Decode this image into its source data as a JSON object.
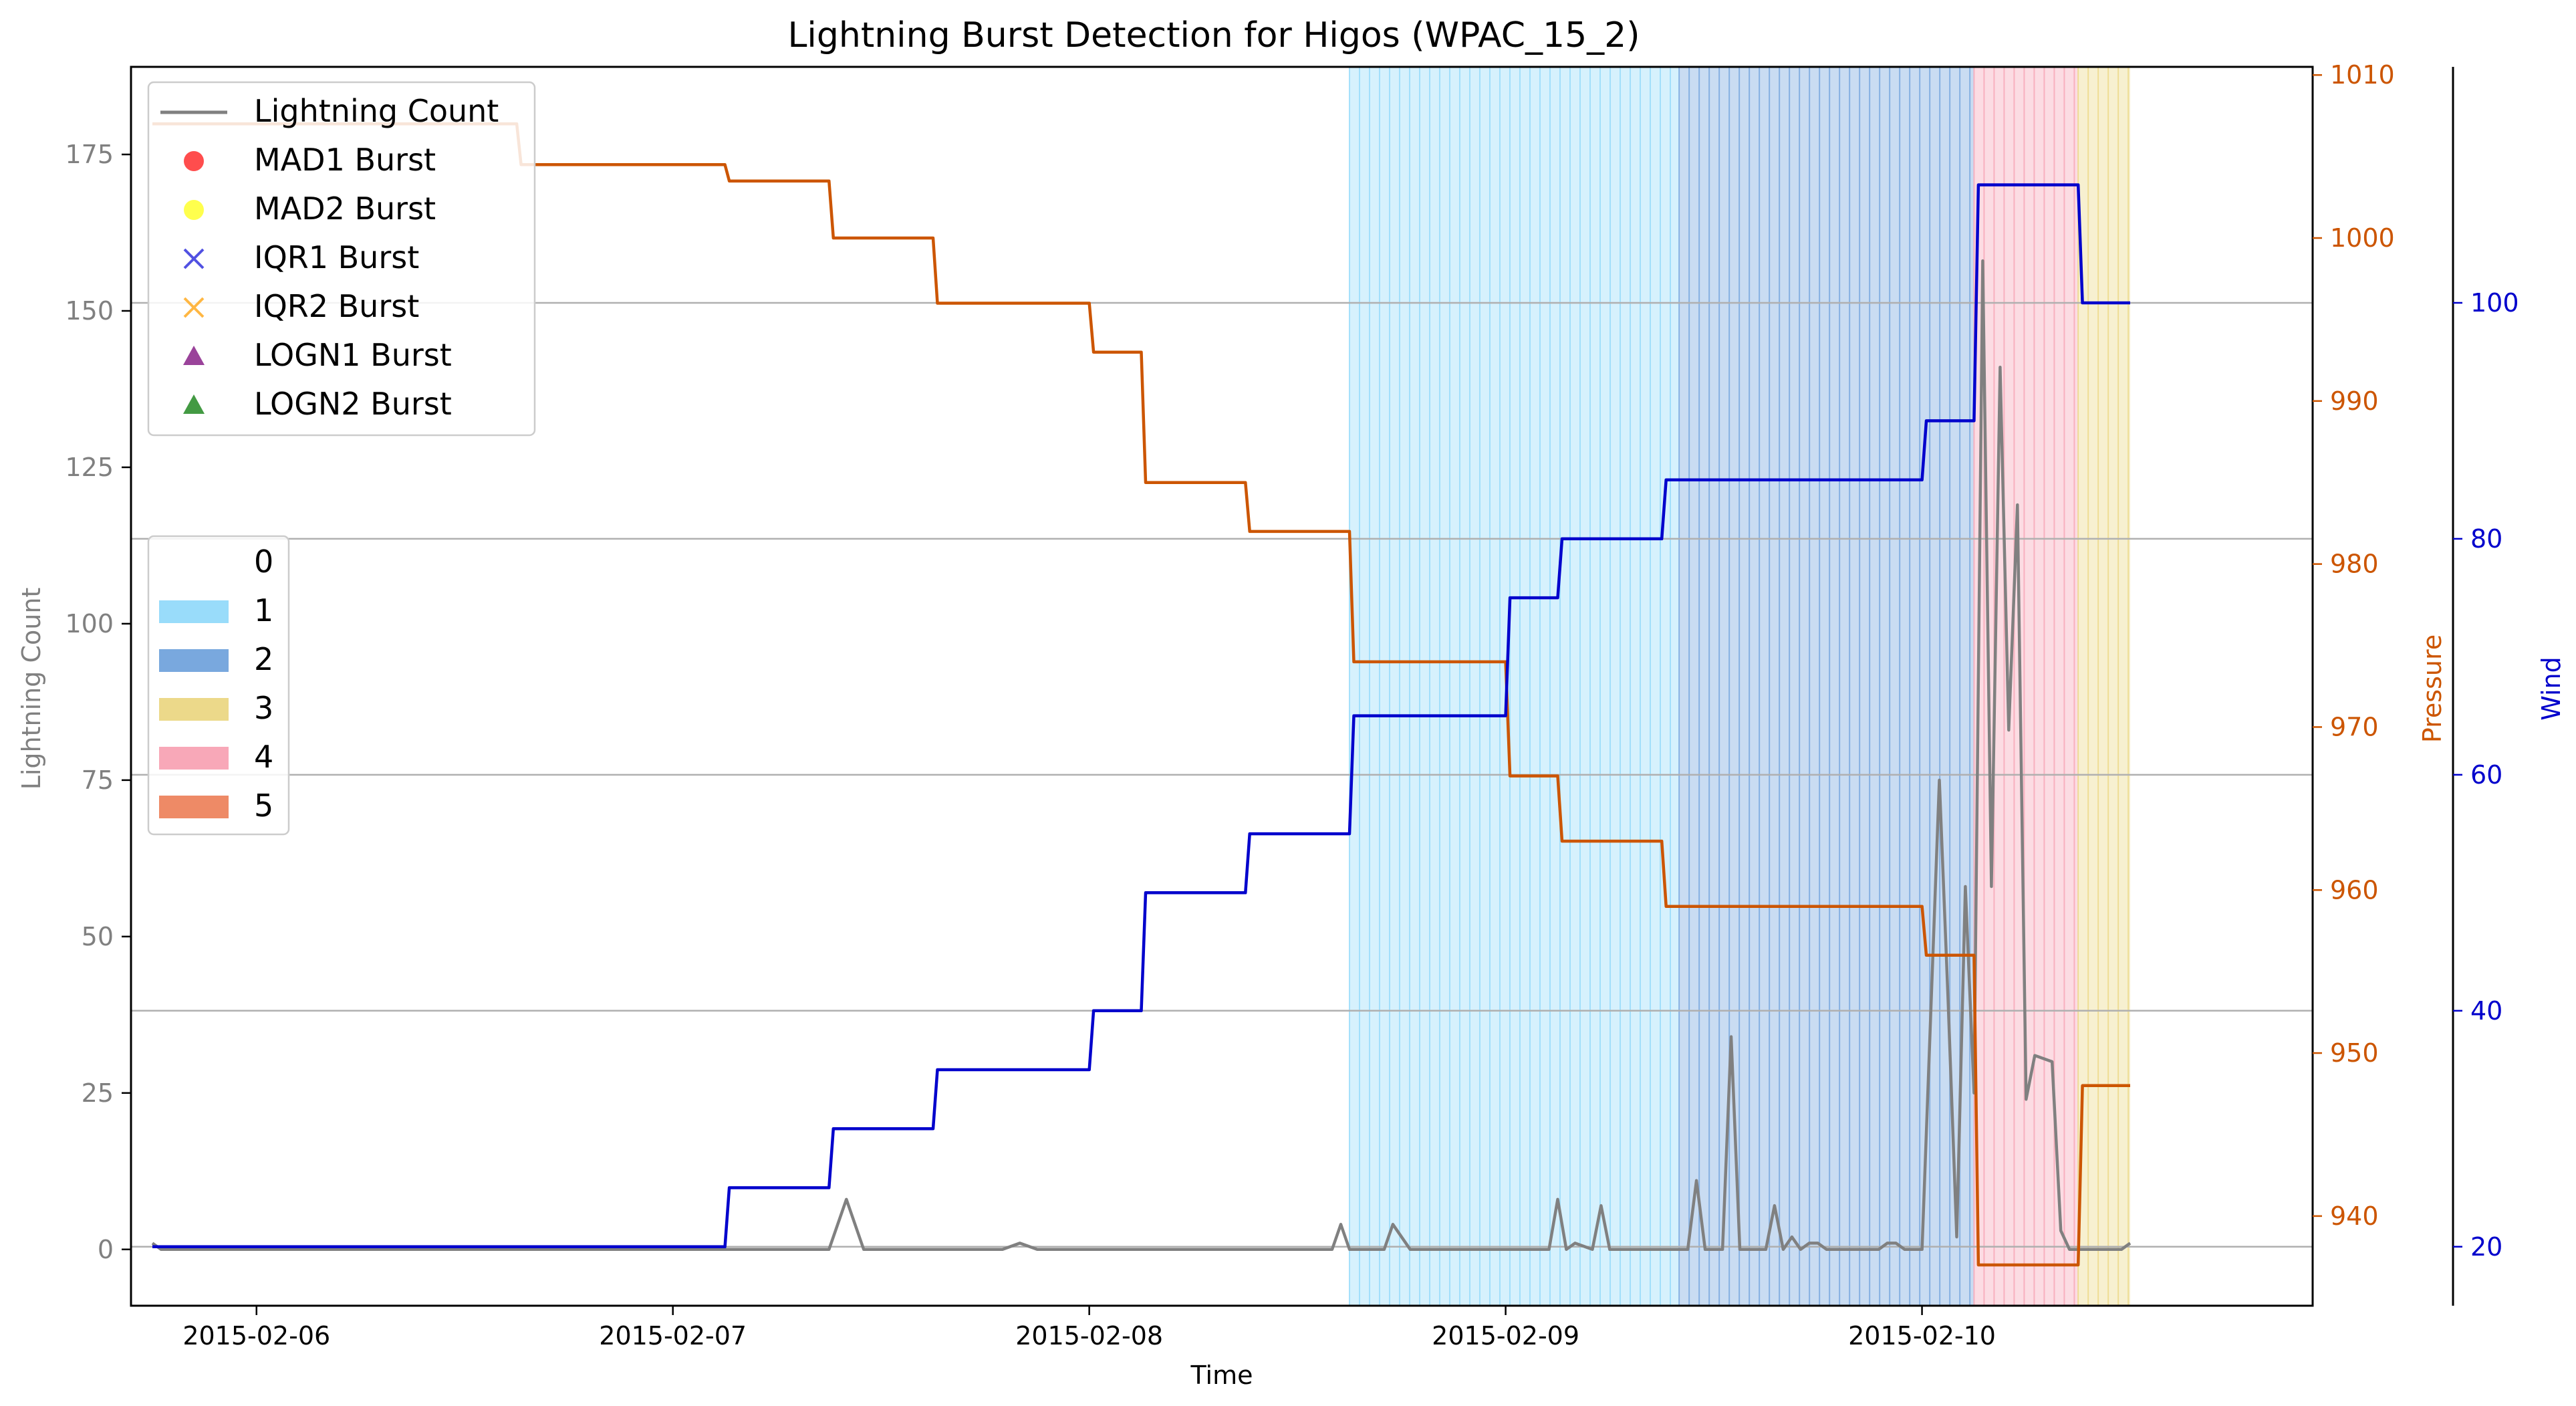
{
  "chart_data": {
    "type": "line",
    "title": "Lightning Burst Detection for Higos (WPAC_15_2)",
    "xlabel": "Time",
    "x_range": [
      "2015-02-05 16:46",
      "2015-02-10 22:31"
    ],
    "x_ticks": [
      "2015-02-06",
      "2015-02-07",
      "2015-02-08",
      "2015-02-09",
      "2015-02-10"
    ],
    "grid": "horizontal lines at wind axis ticks",
    "axes": {
      "lightning": {
        "label": "Lightning Count",
        "ylim": [
          -9,
          189
        ],
        "ticks": [
          0,
          25,
          50,
          75,
          100,
          125,
          150,
          175
        ],
        "color": "#808080"
      },
      "pressure": {
        "label": "Pressure",
        "ylim": [
          934.5,
          1010.5
        ],
        "ticks": [
          940,
          950,
          960,
          970,
          980,
          990,
          1000,
          1010
        ],
        "color": "#cc5500"
      },
      "wind": {
        "label": "Wind",
        "ylim": [
          15,
          120
        ],
        "ticks": [
          20,
          40,
          60,
          80,
          100
        ],
        "color": "#0000cc"
      }
    },
    "category_bands": [
      {
        "category": 1,
        "start": "2015-02-08 15:00",
        "end": "2015-02-09 10:00"
      },
      {
        "category": 2,
        "start": "2015-02-09 10:00",
        "end": "2015-02-10 03:00"
      },
      {
        "category": 4,
        "start": "2015-02-10 03:00",
        "end": "2015-02-10 09:00"
      },
      {
        "category": 3,
        "start": "2015-02-10 09:00",
        "end": "2015-02-10 12:00"
      }
    ],
    "series": [
      {
        "name": "Lightning Count",
        "axis": "lightning",
        "color": "#808080",
        "x": [
          "2015-02-05 18:00",
          "2015-02-05 18:30",
          "2015-02-07 09:00",
          "2015-02-07 10:00",
          "2015-02-07 11:00",
          "2015-02-07 12:00",
          "2015-02-07 19:00",
          "2015-02-07 20:00",
          "2015-02-07 21:00",
          "2015-02-08 14:00",
          "2015-02-08 14:30",
          "2015-02-08 15:00",
          "2015-02-08 17:00",
          "2015-02-08 17:30",
          "2015-02-08 18:30",
          "2015-02-09 02:30",
          "2015-02-09 03:00",
          "2015-02-09 03:30",
          "2015-02-09 04:00",
          "2015-02-09 05:00",
          "2015-02-09 05:30",
          "2015-02-09 06:00",
          "2015-02-09 10:30",
          "2015-02-09 11:00",
          "2015-02-09 11:30",
          "2015-02-09 12:30",
          "2015-02-09 13:00",
          "2015-02-09 13:30",
          "2015-02-09 14:00",
          "2015-02-09 15:00",
          "2015-02-09 15:30",
          "2015-02-09 16:00",
          "2015-02-09 16:30",
          "2015-02-09 17:00",
          "2015-02-09 17:30",
          "2015-02-09 18:00",
          "2015-02-09 18:30",
          "2015-02-09 19:00",
          "2015-02-09 21:30",
          "2015-02-09 22:00",
          "2015-02-09 22:30",
          "2015-02-09 23:00",
          "2015-02-10 00:00",
          "2015-02-10 01:00",
          "2015-02-10 01:30",
          "2015-02-10 02:00",
          "2015-02-10 02:30",
          "2015-02-10 03:00",
          "2015-02-10 03:30",
          "2015-02-10 04:00",
          "2015-02-10 04:30",
          "2015-02-10 05:00",
          "2015-02-10 05:30",
          "2015-02-10 06:00",
          "2015-02-10 06:30",
          "2015-02-10 07:30",
          "2015-02-10 08:00",
          "2015-02-10 08:30",
          "2015-02-10 09:30",
          "2015-02-10 10:00",
          "2015-02-10 11:30",
          "2015-02-10 12:00"
        ],
        "y": [
          1,
          0,
          0,
          8,
          0,
          0,
          0,
          1,
          0,
          0,
          4,
          0,
          0,
          4,
          0,
          0,
          8,
          0,
          1,
          0,
          7,
          0,
          0,
          11,
          0,
          0,
          34,
          0,
          0,
          0,
          7,
          0,
          2,
          0,
          1,
          1,
          0,
          0,
          0,
          1,
          1,
          0,
          0,
          75,
          40,
          2,
          58,
          25,
          158,
          58,
          141,
          83,
          119,
          24,
          31,
          30,
          3,
          0,
          0,
          0,
          0,
          1
        ]
      },
      {
        "name": "Pressure",
        "axis": "pressure",
        "color": "#cc5500",
        "x": [
          "2015-02-05 18:00",
          "2015-02-06 15:00",
          "2015-02-06 15:15",
          "2015-02-07 03:00",
          "2015-02-07 03:15",
          "2015-02-07 09:00",
          "2015-02-07 09:15",
          "2015-02-07 15:00",
          "2015-02-07 15:15",
          "2015-02-07 24:00",
          "2015-02-08 00:15",
          "2015-02-08 03:00",
          "2015-02-08 03:15",
          "2015-02-08 09:00",
          "2015-02-08 09:15",
          "2015-02-08 15:00",
          "2015-02-08 15:15",
          "2015-02-09 00:00",
          "2015-02-09 00:15",
          "2015-02-09 03:00",
          "2015-02-09 03:15",
          "2015-02-09 09:00",
          "2015-02-09 09:15",
          "2015-02-10 00:00",
          "2015-02-10 00:15",
          "2015-02-10 03:00",
          "2015-02-10 03:15",
          "2015-02-10 09:00",
          "2015-02-10 09:15",
          "2015-02-10 12:00"
        ],
        "y": [
          1007,
          1007,
          1004.5,
          1004.5,
          1003.5,
          1003.5,
          1000,
          1000,
          996,
          996,
          993,
          993,
          985,
          985,
          982,
          982,
          974,
          974,
          967,
          967,
          963,
          963,
          959,
          959,
          956,
          956,
          937,
          937,
          948,
          948
        ]
      },
      {
        "name": "Wind",
        "axis": "wind",
        "color": "#0000cc",
        "x": [
          "2015-02-05 18:00",
          "2015-02-07 03:00",
          "2015-02-07 03:15",
          "2015-02-07 09:00",
          "2015-02-07 09:15",
          "2015-02-07 15:00",
          "2015-02-07 15:15",
          "2015-02-07 24:00",
          "2015-02-08 00:15",
          "2015-02-08 03:00",
          "2015-02-08 03:15",
          "2015-02-08 09:00",
          "2015-02-08 09:15",
          "2015-02-08 15:00",
          "2015-02-08 15:15",
          "2015-02-09 00:00",
          "2015-02-09 00:15",
          "2015-02-09 03:00",
          "2015-02-09 03:15",
          "2015-02-09 09:00",
          "2015-02-09 09:15",
          "2015-02-09 24:00",
          "2015-02-10 00:15",
          "2015-02-10 03:00",
          "2015-02-10 03:15",
          "2015-02-10 09:00",
          "2015-02-10 09:15",
          "2015-02-10 12:00"
        ],
        "y": [
          20,
          20,
          25,
          25,
          30,
          30,
          35,
          35,
          40,
          40,
          50,
          50,
          55,
          55,
          65,
          65,
          75,
          75,
          80,
          80,
          85,
          85,
          90,
          90,
          110,
          110,
          100,
          100
        ]
      }
    ],
    "legend_markers": [
      {
        "label": "Lightning Count",
        "kind": "line",
        "color": "#808080"
      },
      {
        "label": "MAD1 Burst",
        "kind": "circle",
        "color": "#ff2020"
      },
      {
        "label": "MAD2 Burst",
        "kind": "circle",
        "color": "#ffff20"
      },
      {
        "label": "IQR1 Burst",
        "kind": "x",
        "color": "#3333dd"
      },
      {
        "label": "IQR2 Burst",
        "kind": "x",
        "color": "#ffaa22"
      },
      {
        "label": "LOGN1 Burst",
        "kind": "triangle",
        "color": "#882288"
      },
      {
        "label": "LOGN2 Burst",
        "kind": "triangle",
        "color": "#228822"
      }
    ],
    "category_legend": [
      {
        "label": "0",
        "color": "#ffffff"
      },
      {
        "label": "1",
        "color": "#99dcfa"
      },
      {
        "label": "2",
        "color": "#79a8de"
      },
      {
        "label": "3",
        "color": "#ecd98a"
      },
      {
        "label": "4",
        "color": "#f8a8b8"
      },
      {
        "label": "5",
        "color": "#ee8a66"
      }
    ],
    "legend_placement": {
      "markers": "top-left",
      "categories": "middle-left"
    }
  }
}
